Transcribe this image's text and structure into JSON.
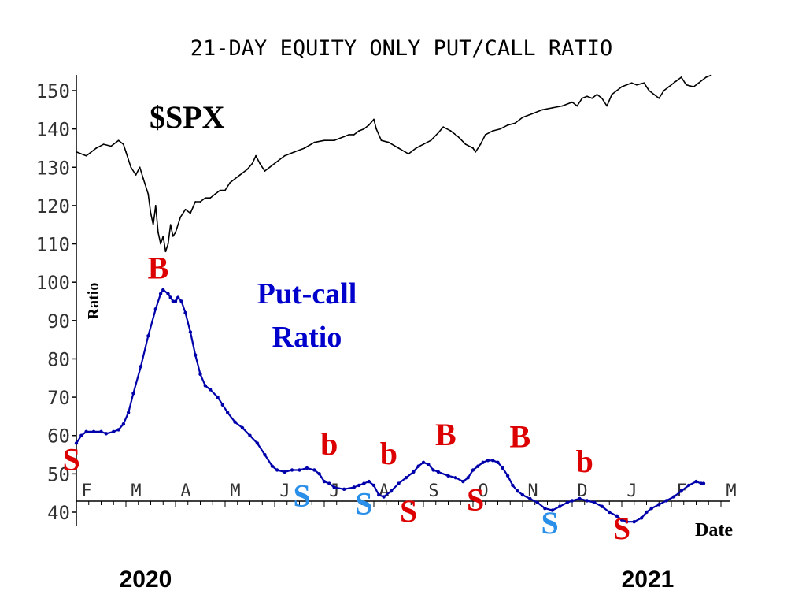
{
  "chart_data": {
    "type": "line",
    "title": "21-DAY EQUITY ONLY PUT/CALL RATIO",
    "ylabel": "Ratio",
    "xlabel": "Date",
    "ylim": [
      40,
      150
    ],
    "y_ticks": [
      "40",
      "50",
      "60",
      "70",
      "80",
      "90",
      "100",
      "110",
      "120",
      "130",
      "140",
      "150"
    ],
    "month_labels": [
      "F",
      "M",
      "A",
      "M",
      "J",
      "J",
      "A",
      "S",
      "O",
      "N",
      "D",
      "J",
      "F",
      "M"
    ],
    "year_labels": [
      "2020",
      "2021"
    ],
    "grid": false,
    "series": [
      {
        "name": "$SPX",
        "color": "#000000",
        "points": [
          [
            0,
            134
          ],
          [
            0.2,
            133
          ],
          [
            0.4,
            135
          ],
          [
            0.55,
            136
          ],
          [
            0.7,
            135.5
          ],
          [
            0.85,
            137
          ],
          [
            0.95,
            136
          ],
          [
            1.0,
            134
          ],
          [
            1.1,
            130
          ],
          [
            1.2,
            128
          ],
          [
            1.28,
            130
          ],
          [
            1.35,
            127
          ],
          [
            1.45,
            123
          ],
          [
            1.5,
            118
          ],
          [
            1.55,
            115
          ],
          [
            1.6,
            120
          ],
          [
            1.65,
            113
          ],
          [
            1.7,
            110
          ],
          [
            1.75,
            112
          ],
          [
            1.8,
            108
          ],
          [
            1.85,
            110
          ],
          [
            1.9,
            115
          ],
          [
            1.95,
            112
          ],
          [
            2.0,
            113
          ],
          [
            2.1,
            117
          ],
          [
            2.2,
            119
          ],
          [
            2.3,
            118
          ],
          [
            2.4,
            121
          ],
          [
            2.5,
            121
          ],
          [
            2.6,
            122
          ],
          [
            2.7,
            122
          ],
          [
            2.8,
            123
          ],
          [
            2.9,
            124
          ],
          [
            3.0,
            124
          ],
          [
            3.1,
            126
          ],
          [
            3.2,
            127
          ],
          [
            3.3,
            128
          ],
          [
            3.45,
            129.5
          ],
          [
            3.55,
            131
          ],
          [
            3.62,
            133
          ],
          [
            3.7,
            131
          ],
          [
            3.8,
            129
          ],
          [
            3.9,
            130
          ],
          [
            4.0,
            131
          ],
          [
            4.2,
            133
          ],
          [
            4.4,
            134
          ],
          [
            4.6,
            135
          ],
          [
            4.8,
            136.5
          ],
          [
            5.0,
            137
          ],
          [
            5.2,
            137
          ],
          [
            5.4,
            138
          ],
          [
            5.5,
            138.5
          ],
          [
            5.6,
            138.5
          ],
          [
            5.7,
            139.5
          ],
          [
            5.8,
            140
          ],
          [
            5.9,
            141
          ],
          [
            6.0,
            142.5
          ],
          [
            6.05,
            140
          ],
          [
            6.15,
            137
          ],
          [
            6.3,
            136.5
          ],
          [
            6.5,
            135
          ],
          [
            6.7,
            133.5
          ],
          [
            6.85,
            135
          ],
          [
            7.0,
            136
          ],
          [
            7.15,
            137
          ],
          [
            7.3,
            139
          ],
          [
            7.4,
            140.5
          ],
          [
            7.55,
            139.5
          ],
          [
            7.7,
            138
          ],
          [
            7.85,
            136
          ],
          [
            8.0,
            135
          ],
          [
            8.05,
            134
          ],
          [
            8.15,
            136
          ],
          [
            8.25,
            138.5
          ],
          [
            8.4,
            139.5
          ],
          [
            8.55,
            140
          ],
          [
            8.7,
            141
          ],
          [
            8.85,
            141.5
          ],
          [
            9.0,
            143
          ],
          [
            9.2,
            144
          ],
          [
            9.4,
            145
          ],
          [
            9.6,
            145.5
          ],
          [
            9.8,
            146
          ],
          [
            10.0,
            147
          ],
          [
            10.1,
            146
          ],
          [
            10.2,
            148
          ],
          [
            10.3,
            148.5
          ],
          [
            10.4,
            148
          ],
          [
            10.5,
            149
          ],
          [
            10.6,
            148
          ],
          [
            10.7,
            146
          ],
          [
            10.8,
            149
          ],
          [
            10.9,
            150
          ],
          [
            11.0,
            151
          ],
          [
            11.2,
            152
          ],
          [
            11.3,
            151.5
          ],
          [
            11.45,
            152
          ],
          [
            11.55,
            150
          ],
          [
            11.65,
            149
          ],
          [
            11.75,
            148
          ],
          [
            11.85,
            150
          ],
          [
            11.95,
            151
          ],
          [
            12.1,
            152.5
          ],
          [
            12.2,
            153.5
          ],
          [
            12.3,
            151.5
          ],
          [
            12.45,
            151
          ],
          [
            12.55,
            152
          ],
          [
            12.7,
            153.5
          ],
          [
            12.8,
            154
          ]
        ]
      },
      {
        "name": "Put-call Ratio",
        "color": "#0000aa",
        "points": [
          [
            0,
            58
          ],
          [
            0.1,
            60
          ],
          [
            0.2,
            61
          ],
          [
            0.35,
            61
          ],
          [
            0.5,
            61
          ],
          [
            0.6,
            60.5
          ],
          [
            0.75,
            61
          ],
          [
            0.85,
            61.5
          ],
          [
            0.95,
            63
          ],
          [
            1.05,
            66
          ],
          [
            1.15,
            71
          ],
          [
            1.3,
            78
          ],
          [
            1.45,
            86
          ],
          [
            1.6,
            93
          ],
          [
            1.7,
            97
          ],
          [
            1.75,
            98
          ],
          [
            1.85,
            97
          ],
          [
            1.9,
            96
          ],
          [
            1.95,
            95
          ],
          [
            2.0,
            95
          ],
          [
            2.05,
            96
          ],
          [
            2.12,
            95
          ],
          [
            2.2,
            92
          ],
          [
            2.3,
            87
          ],
          [
            2.4,
            81
          ],
          [
            2.5,
            76
          ],
          [
            2.6,
            73
          ],
          [
            2.7,
            72
          ],
          [
            2.85,
            70
          ],
          [
            2.95,
            68
          ],
          [
            3.05,
            66
          ],
          [
            3.2,
            63.5
          ],
          [
            3.35,
            62
          ],
          [
            3.5,
            60
          ],
          [
            3.65,
            58
          ],
          [
            3.8,
            55
          ],
          [
            3.95,
            52
          ],
          [
            4.05,
            51
          ],
          [
            4.2,
            50.5
          ],
          [
            4.35,
            51
          ],
          [
            4.5,
            51
          ],
          [
            4.65,
            51.5
          ],
          [
            4.8,
            51
          ],
          [
            4.9,
            50
          ],
          [
            5.0,
            48
          ],
          [
            5.1,
            47.5
          ],
          [
            5.2,
            46.5
          ],
          [
            5.4,
            46
          ],
          [
            5.6,
            46.5
          ],
          [
            5.7,
            47
          ],
          [
            5.8,
            47.5
          ],
          [
            5.9,
            48
          ],
          [
            6.0,
            47
          ],
          [
            6.1,
            44.5
          ],
          [
            6.2,
            44
          ],
          [
            6.35,
            45.5
          ],
          [
            6.5,
            47.5
          ],
          [
            6.65,
            49
          ],
          [
            6.8,
            50.5
          ],
          [
            6.9,
            52
          ],
          [
            7.0,
            53
          ],
          [
            7.1,
            52.5
          ],
          [
            7.2,
            51
          ],
          [
            7.3,
            50.5
          ],
          [
            7.5,
            49.5
          ],
          [
            7.65,
            49
          ],
          [
            7.8,
            48
          ],
          [
            7.9,
            49
          ],
          [
            8.0,
            51
          ],
          [
            8.1,
            52
          ],
          [
            8.2,
            53
          ],
          [
            8.3,
            53.5
          ],
          [
            8.4,
            53.5
          ],
          [
            8.5,
            53
          ],
          [
            8.6,
            51.5
          ],
          [
            8.7,
            49.5
          ],
          [
            8.8,
            47
          ],
          [
            8.9,
            45.5
          ],
          [
            9.0,
            44.5
          ],
          [
            9.15,
            43.5
          ],
          [
            9.3,
            42.5
          ],
          [
            9.45,
            41
          ],
          [
            9.6,
            40.5
          ],
          [
            9.75,
            41.5
          ],
          [
            9.9,
            42.5
          ],
          [
            10.0,
            43
          ],
          [
            10.15,
            43.5
          ],
          [
            10.3,
            43
          ],
          [
            10.45,
            42.5
          ],
          [
            10.6,
            41.5
          ],
          [
            10.75,
            40
          ],
          [
            10.9,
            39
          ],
          [
            11.0,
            38
          ],
          [
            11.1,
            37.5
          ],
          [
            11.25,
            37.5
          ],
          [
            11.4,
            38.5
          ],
          [
            11.5,
            40
          ],
          [
            11.6,
            41
          ],
          [
            11.75,
            42
          ],
          [
            11.9,
            43
          ],
          [
            12.05,
            44
          ],
          [
            12.2,
            45.5
          ],
          [
            12.35,
            47
          ],
          [
            12.5,
            48
          ],
          [
            12.6,
            47.5
          ],
          [
            12.65,
            47.5
          ]
        ]
      }
    ],
    "annotations": {
      "spx_label": "$SPX",
      "putcall_label_line1": "Put-call",
      "putcall_label_line2": "Ratio",
      "signals": [
        {
          "text": "S",
          "color": "#dd0000",
          "x": -0.1,
          "y": 51
        },
        {
          "text": "B",
          "color": "#dd0000",
          "x": 1.65,
          "y": 101
        },
        {
          "text": "S",
          "color": "#2a8fe8",
          "x": 4.55,
          "y": 41.5
        },
        {
          "text": "b",
          "color": "#dd0000",
          "x": 5.1,
          "y": 55
        },
        {
          "text": "S",
          "color": "#2a8fe8",
          "x": 5.8,
          "y": 39.5
        },
        {
          "text": "b",
          "color": "#dd0000",
          "x": 6.3,
          "y": 52.5
        },
        {
          "text": "S",
          "color": "#dd0000",
          "x": 6.7,
          "y": 37.5
        },
        {
          "text": "B",
          "color": "#dd0000",
          "x": 7.45,
          "y": 57.5
        },
        {
          "text": "S",
          "color": "#dd0000",
          "x": 8.05,
          "y": 40.5
        },
        {
          "text": "B",
          "color": "#dd0000",
          "x": 8.95,
          "y": 57
        },
        {
          "text": "S",
          "color": "#2a8fe8",
          "x": 9.55,
          "y": 34.5
        },
        {
          "text": "b",
          "color": "#dd0000",
          "x": 10.25,
          "y": 50.5
        },
        {
          "text": "S",
          "color": "#dd0000",
          "x": 11.0,
          "y": 33
        }
      ]
    }
  }
}
